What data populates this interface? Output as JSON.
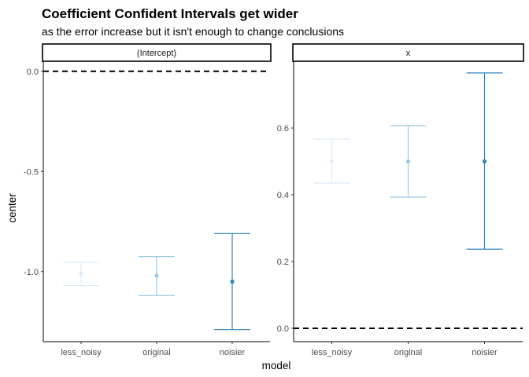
{
  "chart_data": {
    "type": "errorbar",
    "title": "Coefficient Confident Intervals get wider",
    "subtitle": "as the error increase but it isn't enough to change conclusions",
    "xlabel": "model",
    "ylabel": "center",
    "categories": [
      "less_noisy",
      "original",
      "noisier"
    ],
    "colors": {
      "less_noisy": "#deebf7",
      "original": "#9ecae1",
      "noisier": "#3182bd"
    },
    "reference_line": {
      "y": 0,
      "style": "dashed"
    },
    "grid": false,
    "panels": [
      {
        "strip": "(Intercept)",
        "ylim": [
          -1.35,
          0.05
        ],
        "yticks": [
          0.0,
          -0.5,
          -1.0
        ],
        "ytick_labels": [
          "0.0",
          "-0.5",
          "-1.0"
        ],
        "points": [
          {
            "model": "less_noisy",
            "center": -1.01,
            "lower": -1.07,
            "upper": -0.955
          },
          {
            "model": "original",
            "center": -1.02,
            "lower": -1.12,
            "upper": -0.925
          },
          {
            "model": "noisier",
            "center": -1.05,
            "lower": -1.29,
            "upper": -0.81
          }
        ]
      },
      {
        "strip": "x",
        "ylim": [
          -0.04,
          0.8
        ],
        "yticks": [
          0.0,
          0.2,
          0.4,
          0.6
        ],
        "ytick_labels": [
          "0.0",
          "0.2",
          "0.4",
          "0.6"
        ],
        "points": [
          {
            "model": "less_noisy",
            "center": 0.5,
            "lower": 0.435,
            "upper": 0.567
          },
          {
            "model": "original",
            "center": 0.5,
            "lower": 0.393,
            "upper": 0.607
          },
          {
            "model": "noisier",
            "center": 0.5,
            "lower": 0.237,
            "upper": 0.765
          }
        ]
      }
    ]
  }
}
